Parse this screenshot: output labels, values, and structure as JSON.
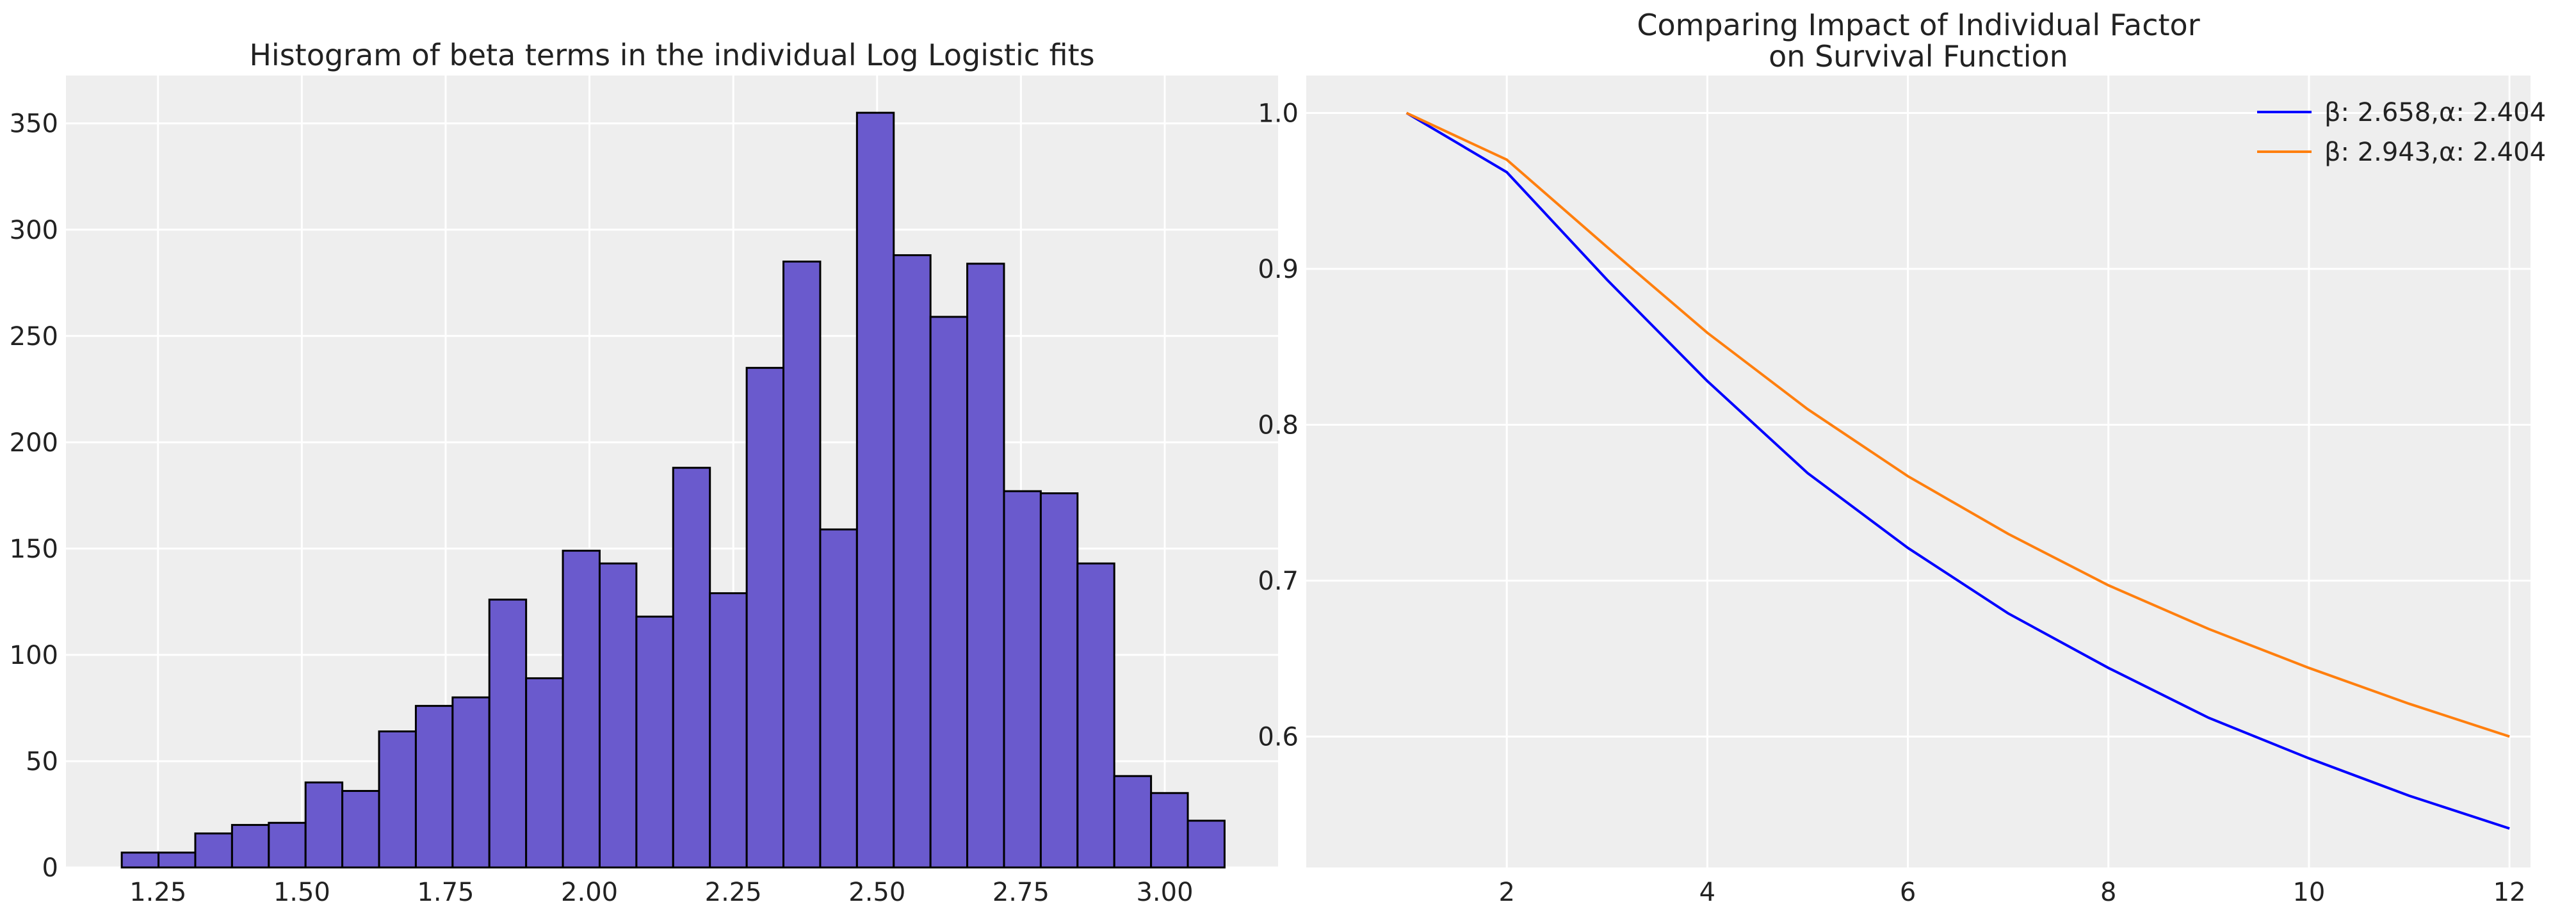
{
  "chart_data": [
    {
      "type": "bar",
      "title": "Histogram of beta terms in the individual Log Logistic fits",
      "xlabel": "",
      "ylabel": "",
      "bin_start": 1.187,
      "bin_width": 0.0639,
      "values": [
        7,
        7,
        16,
        20,
        21,
        40,
        36,
        64,
        76,
        80,
        126,
        89,
        149,
        143,
        118,
        188,
        129,
        235,
        285,
        159,
        355,
        288,
        259,
        284,
        177,
        176,
        143,
        43,
        35,
        22
      ],
      "xlim": [
        1.09,
        3.197
      ],
      "ylim": [
        0,
        372.5
      ],
      "xticks": [
        "1.25",
        "1.50",
        "1.75",
        "2.00",
        "2.25",
        "2.50",
        "2.75",
        "3.00"
      ],
      "yticks": [
        "0",
        "50",
        "100",
        "150",
        "200",
        "250",
        "300",
        "350"
      ],
      "bar_color": "#6a5acd",
      "edge_color": "#000000",
      "grid": true
    },
    {
      "type": "line",
      "title": [
        "Comparing Impact of Individual Factor",
        "on Survival Function"
      ],
      "x": [
        1,
        2,
        3,
        4,
        5,
        6,
        7,
        8,
        9,
        10,
        11,
        12
      ],
      "series": [
        {
          "name": "β: 2.658,α: 2.404",
          "color": "#0000ff",
          "values": [
            1.0,
            0.962,
            0.893,
            0.828,
            0.769,
            0.721,
            0.679,
            0.644,
            0.612,
            0.586,
            0.562,
            0.541
          ]
        },
        {
          "name": "β: 2.943,α: 2.404",
          "color": "#ff7f0e",
          "values": [
            1.0,
            0.97,
            0.914,
            0.859,
            0.81,
            0.767,
            0.73,
            0.697,
            0.669,
            0.644,
            0.621,
            0.6
          ]
        }
      ],
      "xlim": [
        0,
        12.21
      ],
      "ylim": [
        0.516,
        1.024
      ],
      "xticks": [
        "2",
        "4",
        "6",
        "8",
        "10",
        "12"
      ],
      "yticks": [
        "0.6",
        "0.7",
        "0.8",
        "0.9",
        "1.0"
      ],
      "legend": "top-right",
      "grid": true
    }
  ]
}
